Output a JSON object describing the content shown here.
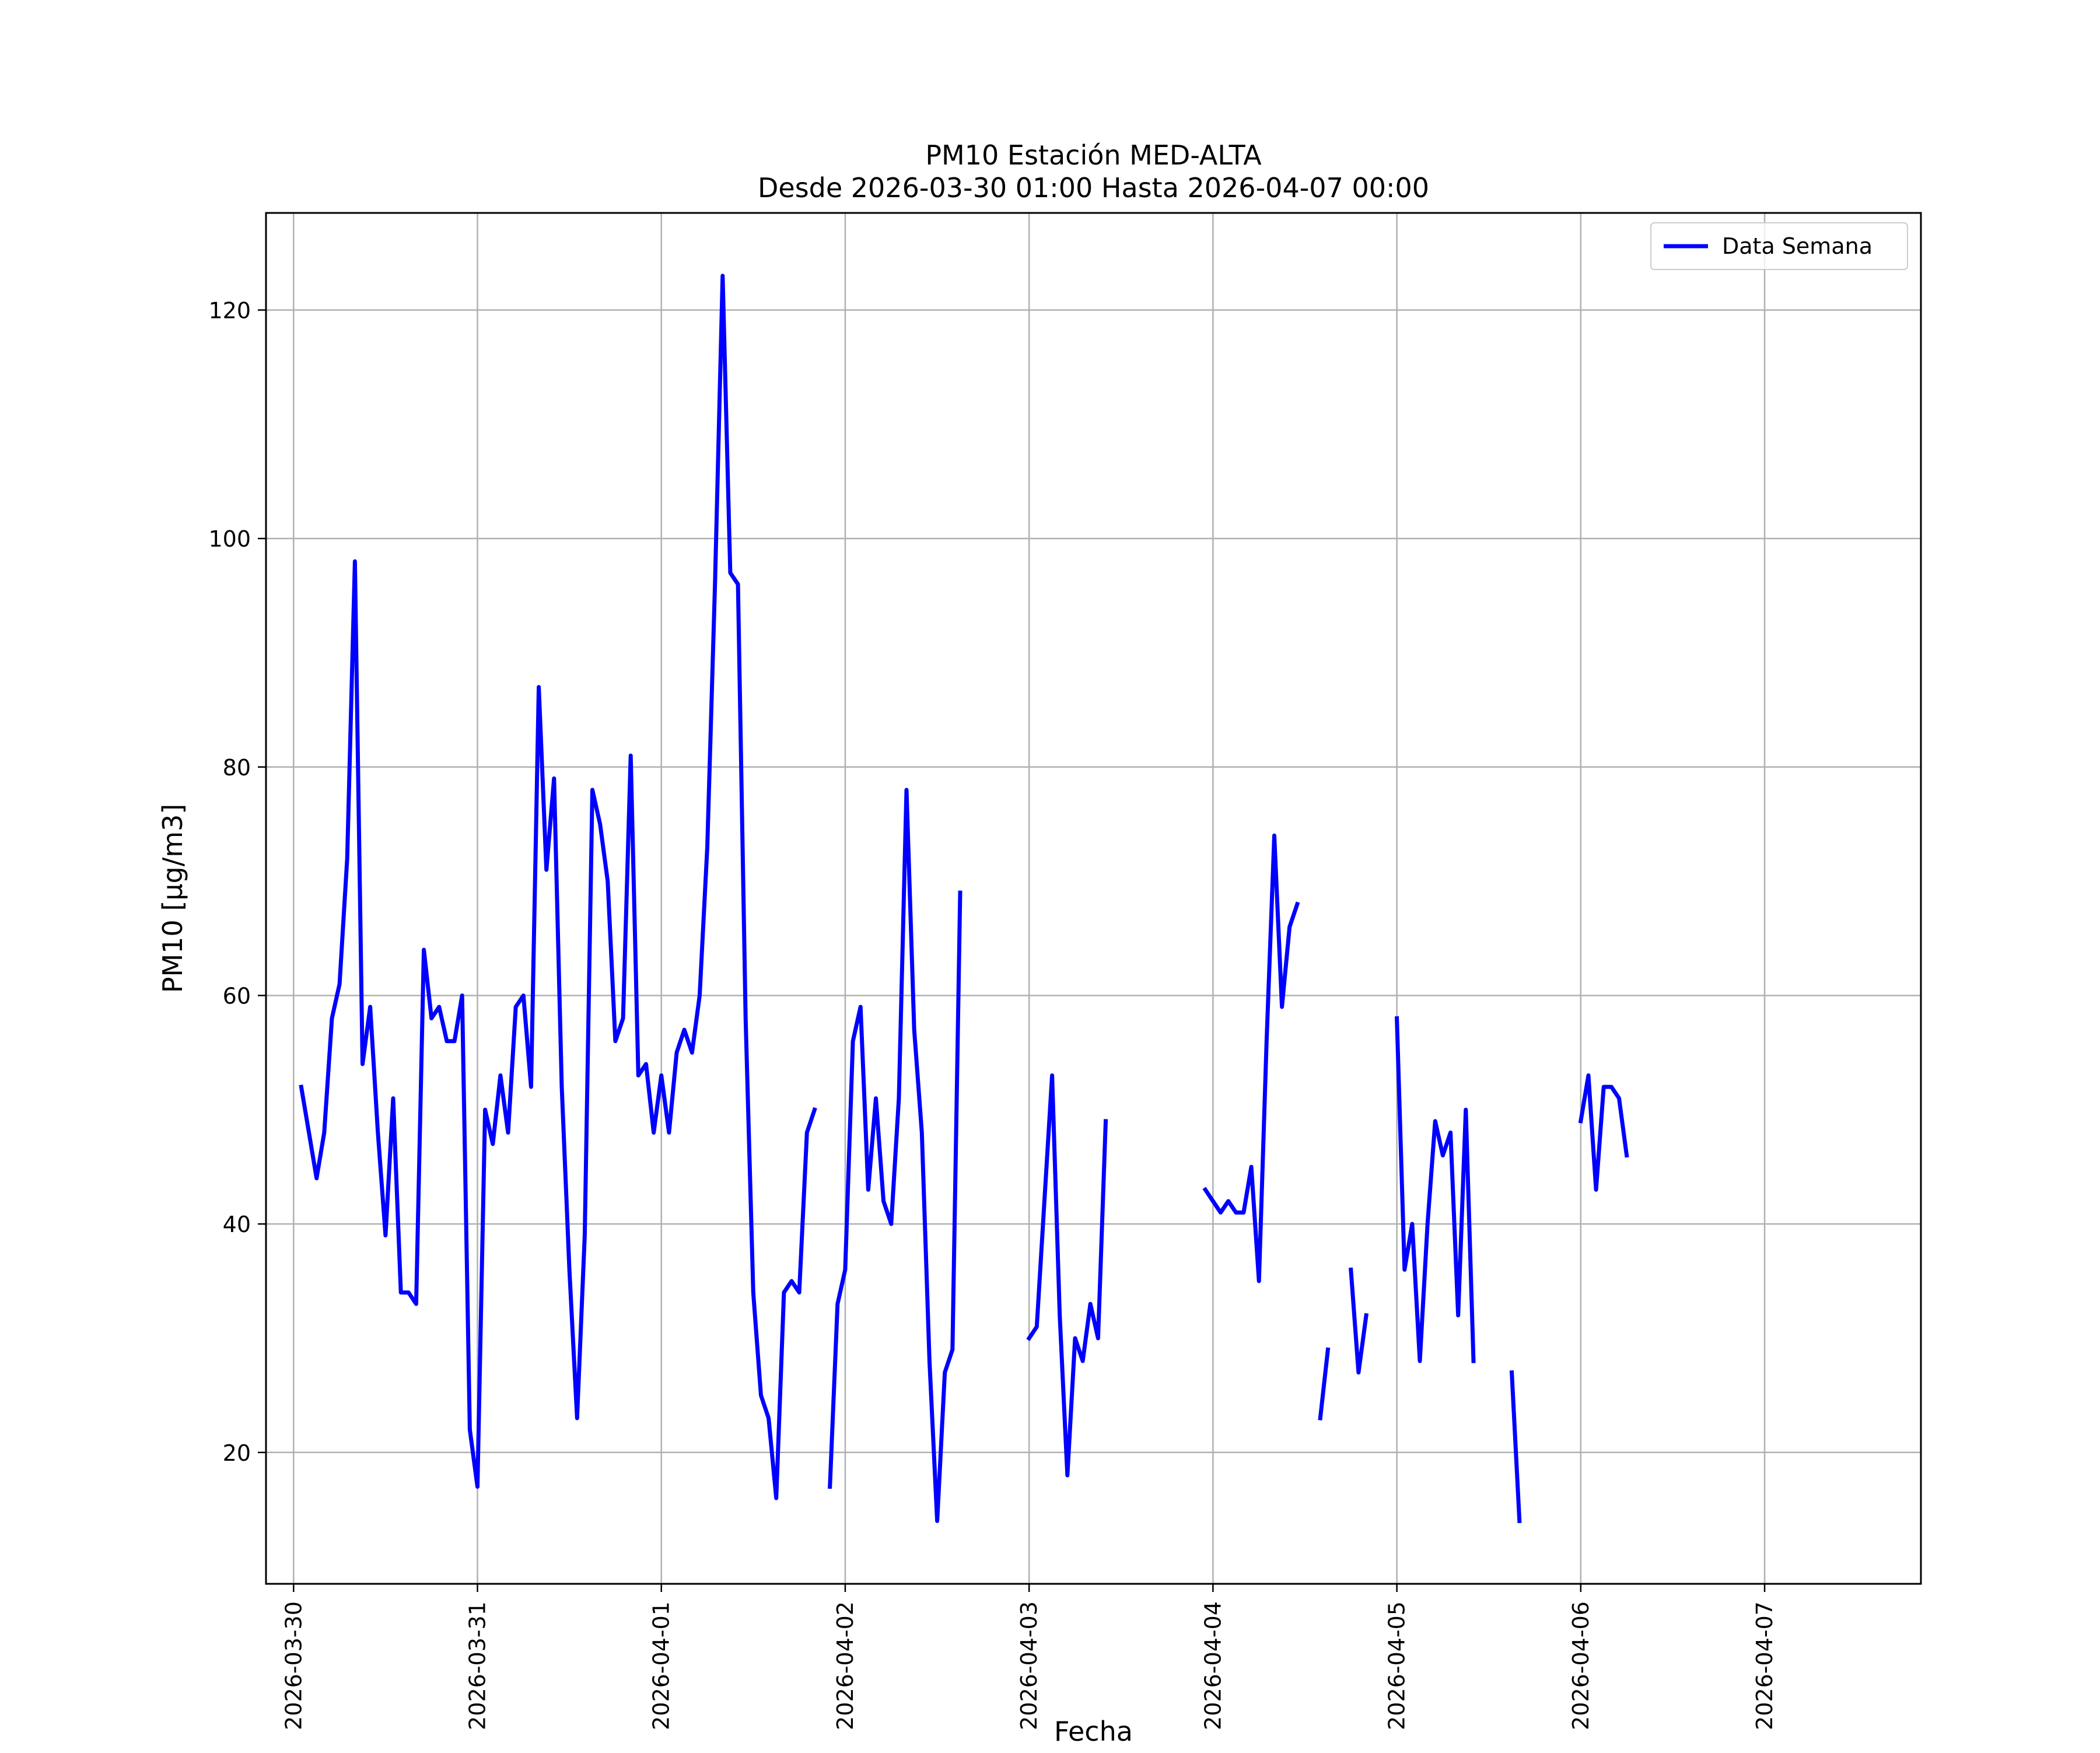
{
  "colors": {
    "series": "#0000ff",
    "grid": "#b0b0b0",
    "axes": "#000000",
    "background": "#ffffff"
  },
  "chart_data": {
    "type": "line",
    "title": "PM10 Estación MED-ALTA",
    "subtitle": "Desde 2026-03-30 01:00 Hasta 2026-04-07 00:00",
    "xlabel": "Fecha",
    "ylabel": "PM10 [μg/m3]",
    "grid": true,
    "legend_position": "top-right",
    "xlim": [
      "2026-03-29 20:24",
      "2026-04-07 20:24"
    ],
    "ylim": [
      8.5,
      128.5
    ],
    "x_tick_labels": [
      "2026-03-30",
      "2026-03-31",
      "2026-04-01",
      "2026-04-02",
      "2026-04-03",
      "2026-04-04",
      "2026-04-05",
      "2026-04-06",
      "2026-04-07"
    ],
    "y_ticks": [
      20,
      40,
      60,
      80,
      100,
      120
    ],
    "series": [
      {
        "name": "Data Semana",
        "x": [
          "2026-03-30 01:00",
          "2026-03-30 02:00",
          "2026-03-30 03:00",
          "2026-03-30 04:00",
          "2026-03-30 05:00",
          "2026-03-30 06:00",
          "2026-03-30 07:00",
          "2026-03-30 08:00",
          "2026-03-30 09:00",
          "2026-03-30 10:00",
          "2026-03-30 11:00",
          "2026-03-30 12:00",
          "2026-03-30 13:00",
          "2026-03-30 14:00",
          "2026-03-30 15:00",
          "2026-03-30 16:00",
          "2026-03-30 17:00",
          "2026-03-30 18:00",
          "2026-03-30 19:00",
          "2026-03-30 20:00",
          "2026-03-30 21:00",
          "2026-03-30 22:00",
          "2026-03-30 23:00",
          "2026-03-31 00:00",
          "2026-03-31 01:00",
          "2026-03-31 02:00",
          "2026-03-31 03:00",
          "2026-03-31 04:00",
          "2026-03-31 05:00",
          "2026-03-31 06:00",
          "2026-03-31 07:00",
          "2026-03-31 08:00",
          "2026-03-31 09:00",
          "2026-03-31 10:00",
          "2026-03-31 11:00",
          "2026-03-31 12:00",
          "2026-03-31 13:00",
          "2026-03-31 14:00",
          "2026-03-31 15:00",
          "2026-03-31 16:00",
          "2026-03-31 17:00",
          "2026-03-31 18:00",
          "2026-03-31 19:00",
          "2026-03-31 20:00",
          "2026-03-31 21:00",
          "2026-03-31 22:00",
          "2026-03-31 23:00",
          "2026-04-01 00:00",
          "2026-04-01 01:00",
          "2026-04-01 02:00",
          "2026-04-01 03:00",
          "2026-04-01 04:00",
          "2026-04-01 05:00",
          "2026-04-01 06:00",
          "2026-04-01 07:00",
          "2026-04-01 08:00",
          "2026-04-01 09:00",
          "2026-04-01 10:00",
          "2026-04-01 11:00",
          "2026-04-01 12:00",
          "2026-04-01 13:00",
          "2026-04-01 14:00",
          "2026-04-01 15:00",
          "2026-04-01 16:00",
          "2026-04-01 17:00",
          "2026-04-01 18:00",
          "2026-04-01 19:00",
          "2026-04-01 20:00",
          "2026-04-01 21:00",
          "2026-04-01 22:00",
          "2026-04-01 23:00",
          "2026-04-02 00:00",
          "2026-04-02 01:00",
          "2026-04-02 02:00",
          "2026-04-02 03:00",
          "2026-04-02 04:00",
          "2026-04-02 05:00",
          "2026-04-02 06:00",
          "2026-04-02 07:00",
          "2026-04-02 08:00",
          "2026-04-02 09:00",
          "2026-04-02 10:00",
          "2026-04-02 11:00",
          "2026-04-02 12:00",
          "2026-04-02 13:00",
          "2026-04-02 14:00",
          "2026-04-02 15:00",
          "2026-04-03 00:00",
          "2026-04-03 01:00",
          "2026-04-03 02:00",
          "2026-04-03 03:00",
          "2026-04-03 04:00",
          "2026-04-03 05:00",
          "2026-04-03 06:00",
          "2026-04-03 07:00",
          "2026-04-03 08:00",
          "2026-04-03 09:00",
          "2026-04-03 10:00",
          "2026-04-03 23:00",
          "2026-04-04 00:00",
          "2026-04-04 01:00",
          "2026-04-04 02:00",
          "2026-04-04 03:00",
          "2026-04-04 04:00",
          "2026-04-04 05:00",
          "2026-04-04 06:00",
          "2026-04-04 07:00",
          "2026-04-04 08:00",
          "2026-04-04 09:00",
          "2026-04-04 10:00",
          "2026-04-04 11:00",
          "2026-04-04 14:00",
          "2026-04-04 15:00",
          "2026-04-04 18:00",
          "2026-04-04 19:00",
          "2026-04-04 20:00",
          "2026-04-05 00:00",
          "2026-04-05 01:00",
          "2026-04-05 02:00",
          "2026-04-05 03:00",
          "2026-04-05 04:00",
          "2026-04-05 05:00",
          "2026-04-05 06:00",
          "2026-04-05 07:00",
          "2026-04-05 08:00",
          "2026-04-05 09:00",
          "2026-04-05 10:00",
          "2026-04-05 15:00",
          "2026-04-05 16:00",
          "2026-04-06 00:00",
          "2026-04-06 01:00",
          "2026-04-06 02:00",
          "2026-04-06 03:00",
          "2026-04-06 04:00",
          "2026-04-06 05:00",
          "2026-04-06 06:00"
        ],
        "y": [
          52,
          48,
          44,
          48,
          58,
          61,
          72,
          98,
          54,
          59,
          48,
          39,
          51,
          34,
          34,
          33,
          64,
          58,
          59,
          56,
          56,
          60,
          22,
          17,
          50,
          47,
          53,
          48,
          59,
          60,
          52,
          87,
          71,
          79,
          52,
          36,
          23,
          39,
          78,
          75,
          70,
          56,
          58,
          81,
          53,
          54,
          48,
          53,
          48,
          55,
          57,
          55,
          60,
          73,
          96,
          123,
          97,
          96,
          58,
          34,
          25,
          23,
          16,
          34,
          35,
          34,
          48,
          50,
          null,
          17,
          33,
          36,
          56,
          59,
          43,
          51,
          42,
          40,
          51,
          78,
          57,
          48,
          28,
          14,
          27,
          29,
          69,
          30,
          31,
          42,
          53,
          32,
          18,
          30,
          28,
          33,
          30,
          49,
          43,
          42,
          41,
          42,
          41,
          41,
          45,
          35,
          56,
          74,
          59,
          66,
          68,
          23,
          29,
          36,
          27,
          32,
          58,
          36,
          40,
          28,
          40,
          49,
          46,
          48,
          32,
          50,
          28,
          27,
          14,
          49,
          53,
          43,
          52,
          52,
          51,
          46
        ]
      }
    ]
  }
}
